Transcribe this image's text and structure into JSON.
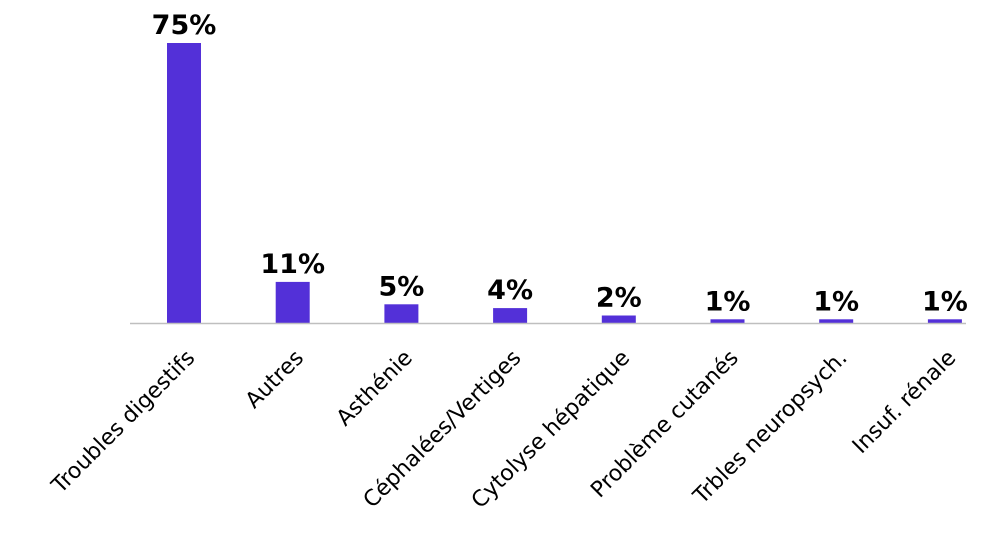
{
  "colors": {
    "bar": "#5330d8",
    "axis": "#bfbfbf",
    "text": "#000000",
    "background": "#ffffff"
  },
  "chart_data": {
    "type": "bar",
    "categories": [
      "Troubles digestifs",
      "Autres",
      "Asthénie",
      "Céphalées/Vertiges",
      "Cytolyse hépatique",
      "Problème cutanés",
      "Trbles neuropsych.",
      "Insuf. rénale"
    ],
    "values": [
      75,
      11,
      5,
      4,
      2,
      1,
      1,
      1
    ],
    "value_labels": [
      "75%",
      "11%",
      "5%",
      "4%",
      "2%",
      "1%",
      "1%",
      "1%"
    ],
    "unit": "%",
    "title": "",
    "xlabel": "",
    "ylabel": "",
    "ylim": [
      0,
      75
    ],
    "grid": false,
    "legend": "none"
  }
}
